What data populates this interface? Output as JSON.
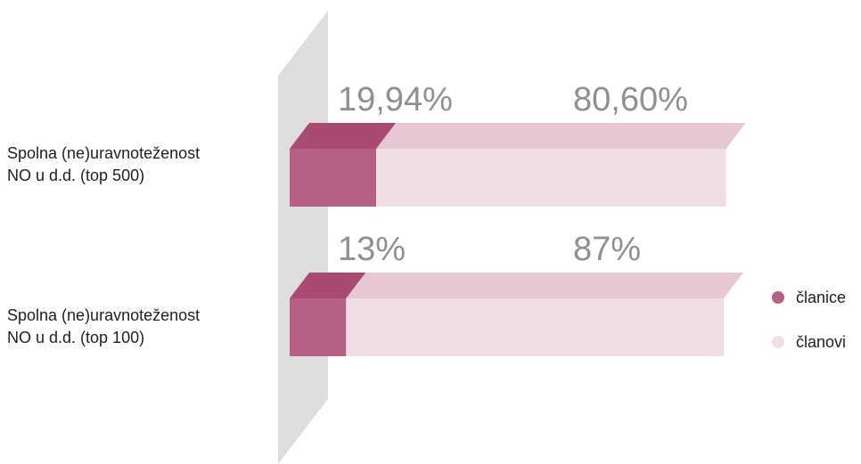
{
  "chart_data": {
    "type": "bar",
    "stacked": true,
    "orientation": "horizontal",
    "three_d": true,
    "categories": [
      "Spolna (ne)uravnoteženost\nNO u d.d. (top 500)",
      "Spolna (ne)uravnoteženost\nNO u d.d. (top 100)"
    ],
    "series": [
      {
        "name": "članice",
        "values": [
          19.94,
          13
        ],
        "labels": [
          "19,94%",
          "13%"
        ],
        "color": "#b76086",
        "top_color": "#a84a72"
      },
      {
        "name": "članovi",
        "values": [
          80.6,
          87
        ],
        "labels": [
          "80,60%",
          "87%"
        ],
        "color": "#f0dce4",
        "top_color": "#e8c7d5"
      }
    ],
    "legend_position": "right",
    "grid": false,
    "wall_color": "#dddddd",
    "label_color": "#909090"
  }
}
